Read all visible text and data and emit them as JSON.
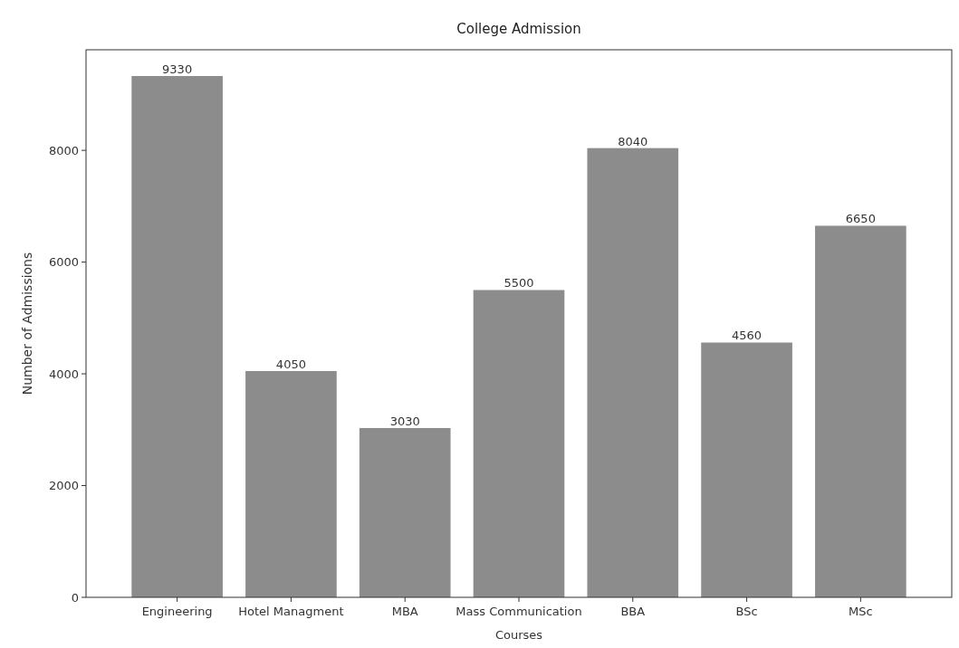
{
  "chart_data": {
    "type": "bar",
    "title": "College Admission",
    "xlabel": "Courses",
    "ylabel": "Number of Admissions",
    "categories": [
      "Engineering",
      "Hotel Managment",
      "MBA",
      "Mass Communication",
      "BBA",
      "BSc",
      "MSc"
    ],
    "values": [
      9330,
      4050,
      3030,
      5500,
      8040,
      4560,
      6650
    ],
    "color": "#8c8c8c",
    "ylim": [
      0,
      9800
    ],
    "yticks": [
      0,
      2000,
      4000,
      6000,
      8000
    ],
    "data_labels": true
  }
}
